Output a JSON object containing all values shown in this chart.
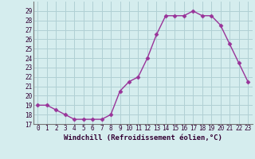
{
  "x": [
    0,
    1,
    2,
    3,
    4,
    5,
    6,
    7,
    8,
    9,
    10,
    11,
    12,
    13,
    14,
    15,
    16,
    17,
    18,
    19,
    20,
    21,
    22,
    23
  ],
  "y": [
    19.0,
    19.0,
    18.5,
    18.0,
    17.5,
    17.5,
    17.5,
    17.5,
    18.0,
    20.5,
    21.5,
    22.0,
    24.0,
    26.5,
    28.5,
    28.5,
    28.5,
    29.0,
    28.5,
    28.5,
    27.5,
    25.5,
    23.5,
    21.5
  ],
  "line_color": "#993399",
  "marker": "D",
  "marker_size": 2.5,
  "bg_color": "#d5edee",
  "grid_color": "#b0d0d4",
  "xlabel": "Windchill (Refroidissement éolien,°C)",
  "xlim": [
    -0.5,
    23.5
  ],
  "ylim": [
    17,
    30
  ],
  "yticks": [
    17,
    18,
    19,
    20,
    21,
    22,
    23,
    24,
    25,
    26,
    27,
    28,
    29
  ],
  "xticks": [
    0,
    1,
    2,
    3,
    4,
    5,
    6,
    7,
    8,
    9,
    10,
    11,
    12,
    13,
    14,
    15,
    16,
    17,
    18,
    19,
    20,
    21,
    22,
    23
  ],
  "tick_label_size": 5.5,
  "xlabel_size": 6.5
}
